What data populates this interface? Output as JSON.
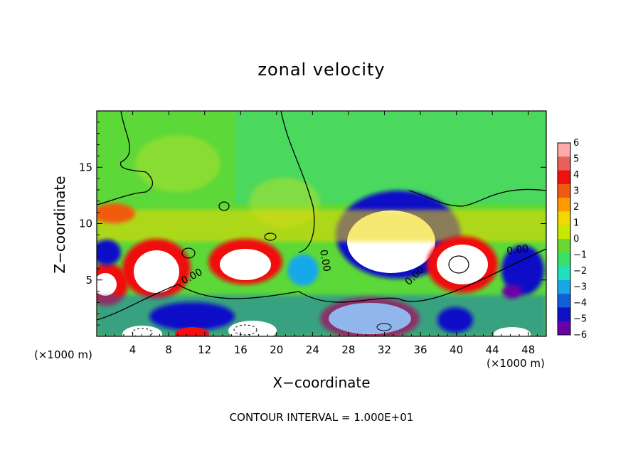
{
  "chart_data": {
    "type": "heatmap",
    "title": "zonal velocity",
    "xlabel": "X−coordinate",
    "ylabel": "Z−coordinate",
    "x_unit": "(×1000 m)",
    "footer": "CONTOUR INTERVAL = 1.000E+01",
    "xlim": [
      0,
      50
    ],
    "ylim": [
      0,
      20
    ],
    "x_ticks": [
      4,
      8,
      12,
      16,
      20,
      24,
      28,
      32,
      36,
      40,
      44,
      48
    ],
    "x_tick_labels": [
      "4",
      "8",
      "12",
      "16",
      "20",
      "24",
      "28",
      "32",
      "36",
      "40",
      "44",
      "48"
    ],
    "y_ticks": [
      5,
      10,
      15
    ],
    "y_tick_labels": [
      "5",
      "10",
      "15"
    ],
    "colorbar": {
      "min": -6,
      "max": 6,
      "ticks": [
        6,
        5,
        4,
        3,
        2,
        1,
        0,
        -1,
        -2,
        -3,
        -4,
        -5,
        -6
      ],
      "tick_labels": [
        "6",
        "5",
        "4",
        "3",
        "2",
        "1",
        "0",
        "−1",
        "−2",
        "−3",
        "−4",
        "−5",
        "−6"
      ],
      "colors": [
        "#ffaaaa",
        "#e8605a",
        "#f01010",
        "#f05a10",
        "#ff9a00",
        "#f0d800",
        "#c8e800",
        "#6ad830",
        "#38e068",
        "#20e0c0",
        "#18a8e8",
        "#1060d8",
        "#1010c8",
        "#6a00a8"
      ]
    },
    "contour_labels": [
      "0.00",
      "0.00",
      "0.00",
      "0.00"
    ]
  }
}
